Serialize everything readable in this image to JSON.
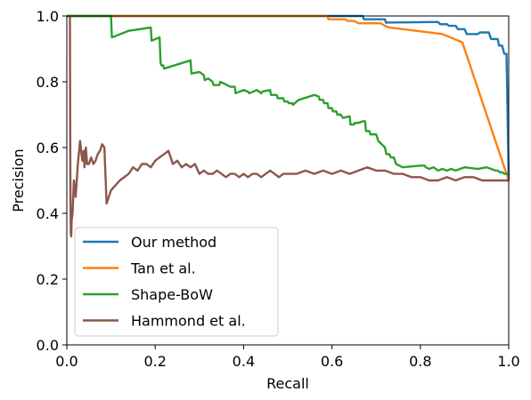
{
  "chart_data": {
    "type": "line",
    "title": "",
    "xlabel": "Recall",
    "ylabel": "Precision",
    "xlim": [
      0.0,
      1.0
    ],
    "ylim": [
      0.0,
      1.0
    ],
    "xticks": [
      "0.0",
      "0.2",
      "0.4",
      "0.6",
      "0.8",
      "1.0"
    ],
    "yticks": [
      "0.0",
      "0.2",
      "0.4",
      "0.6",
      "0.8",
      "1.0"
    ],
    "grid": false,
    "legend_position": "lower-left",
    "series": [
      {
        "name": "Our method",
        "color": "#1f77b4",
        "x": [
          0.0,
          0.67,
          0.672,
          0.72,
          0.722,
          0.84,
          0.845,
          0.86,
          0.865,
          0.88,
          0.885,
          0.9,
          0.905,
          0.93,
          0.935,
          0.955,
          0.96,
          0.975,
          0.978,
          0.985,
          0.99,
          0.995,
          1.0
        ],
        "y": [
          1.0,
          1.0,
          0.99,
          0.99,
          0.98,
          0.982,
          0.975,
          0.975,
          0.97,
          0.97,
          0.96,
          0.96,
          0.945,
          0.945,
          0.95,
          0.95,
          0.93,
          0.93,
          0.91,
          0.91,
          0.885,
          0.885,
          0.5
        ]
      },
      {
        "name": "Tan et al.",
        "color": "#ff7f0e",
        "x": [
          0.0,
          0.59,
          0.592,
          0.63,
          0.635,
          0.65,
          0.66,
          0.71,
          0.72,
          0.73,
          0.85,
          0.895,
          1.0
        ],
        "y": [
          1.0,
          1.0,
          0.99,
          0.99,
          0.985,
          0.985,
          0.978,
          0.978,
          0.97,
          0.965,
          0.945,
          0.92,
          0.5
        ]
      },
      {
        "name": "Shape-BoW",
        "color": "#2ca02c",
        "x": [
          0.0,
          0.1,
          0.102,
          0.14,
          0.19,
          0.192,
          0.21,
          0.212,
          0.214,
          0.218,
          0.22,
          0.28,
          0.282,
          0.3,
          0.31,
          0.312,
          0.32,
          0.33,
          0.332,
          0.345,
          0.347,
          0.37,
          0.38,
          0.382,
          0.4,
          0.41,
          0.413,
          0.43,
          0.44,
          0.442,
          0.46,
          0.462,
          0.475,
          0.477,
          0.49,
          0.492,
          0.5,
          0.502,
          0.51,
          0.512,
          0.52,
          0.525,
          0.56,
          0.57,
          0.572,
          0.58,
          0.582,
          0.59,
          0.592,
          0.6,
          0.602,
          0.61,
          0.612,
          0.62,
          0.625,
          0.64,
          0.642,
          0.65,
          0.652,
          0.66,
          0.67,
          0.675,
          0.677,
          0.685,
          0.687,
          0.7,
          0.705,
          0.72,
          0.723,
          0.73,
          0.733,
          0.74,
          0.745,
          0.76,
          0.8,
          0.81,
          0.812,
          0.82,
          0.83,
          0.84,
          0.85,
          0.86,
          0.87,
          0.88,
          0.89,
          0.9,
          0.93,
          0.95,
          0.96,
          0.97,
          0.975,
          0.98,
          0.985,
          0.99,
          1.0
        ],
        "y": [
          1.0,
          1.0,
          0.935,
          0.955,
          0.965,
          0.925,
          0.935,
          0.86,
          0.85,
          0.85,
          0.84,
          0.865,
          0.825,
          0.83,
          0.82,
          0.805,
          0.81,
          0.8,
          0.79,
          0.79,
          0.8,
          0.785,
          0.785,
          0.765,
          0.775,
          0.77,
          0.765,
          0.775,
          0.765,
          0.77,
          0.775,
          0.76,
          0.76,
          0.75,
          0.75,
          0.74,
          0.74,
          0.735,
          0.735,
          0.73,
          0.74,
          0.745,
          0.76,
          0.755,
          0.745,
          0.745,
          0.735,
          0.735,
          0.72,
          0.72,
          0.71,
          0.71,
          0.7,
          0.7,
          0.69,
          0.695,
          0.67,
          0.67,
          0.675,
          0.675,
          0.68,
          0.68,
          0.65,
          0.65,
          0.64,
          0.64,
          0.62,
          0.6,
          0.58,
          0.58,
          0.57,
          0.57,
          0.55,
          0.54,
          0.545,
          0.545,
          0.54,
          0.535,
          0.54,
          0.53,
          0.535,
          0.53,
          0.535,
          0.53,
          0.535,
          0.54,
          0.535,
          0.54,
          0.535,
          0.53,
          0.53,
          0.525,
          0.525,
          0.52,
          0.52
        ]
      },
      {
        "name": "Hammond et al.",
        "color": "#8c564b",
        "x": [
          0.007,
          0.008,
          0.009,
          0.01,
          0.011,
          0.013,
          0.016,
          0.02,
          0.025,
          0.03,
          0.035,
          0.038,
          0.04,
          0.043,
          0.046,
          0.05,
          0.055,
          0.06,
          0.065,
          0.07,
          0.075,
          0.08,
          0.085,
          0.09,
          0.095,
          0.1,
          0.12,
          0.14,
          0.15,
          0.16,
          0.17,
          0.18,
          0.19,
          0.2,
          0.21,
          0.22,
          0.23,
          0.235,
          0.24,
          0.25,
          0.26,
          0.27,
          0.28,
          0.29,
          0.3,
          0.31,
          0.32,
          0.33,
          0.34,
          0.35,
          0.36,
          0.37,
          0.38,
          0.39,
          0.4,
          0.41,
          0.42,
          0.43,
          0.44,
          0.45,
          0.46,
          0.47,
          0.48,
          0.49,
          0.5,
          0.52,
          0.54,
          0.56,
          0.58,
          0.6,
          0.62,
          0.64,
          0.66,
          0.68,
          0.7,
          0.72,
          0.74,
          0.76,
          0.78,
          0.8,
          0.82,
          0.84,
          0.86,
          0.88,
          0.9,
          0.92,
          0.94,
          0.96,
          0.98,
          1.0
        ],
        "y": [
          1.0,
          0.5,
          0.34,
          0.33,
          0.38,
          0.4,
          0.5,
          0.45,
          0.55,
          0.62,
          0.56,
          0.59,
          0.54,
          0.6,
          0.55,
          0.55,
          0.57,
          0.55,
          0.56,
          0.58,
          0.59,
          0.61,
          0.6,
          0.43,
          0.45,
          0.47,
          0.5,
          0.52,
          0.54,
          0.53,
          0.55,
          0.55,
          0.54,
          0.56,
          0.57,
          0.58,
          0.59,
          0.57,
          0.55,
          0.56,
          0.54,
          0.55,
          0.54,
          0.55,
          0.52,
          0.53,
          0.52,
          0.52,
          0.53,
          0.52,
          0.51,
          0.52,
          0.52,
          0.51,
          0.52,
          0.51,
          0.52,
          0.52,
          0.51,
          0.52,
          0.53,
          0.52,
          0.51,
          0.52,
          0.52,
          0.52,
          0.53,
          0.52,
          0.53,
          0.52,
          0.53,
          0.52,
          0.53,
          0.54,
          0.53,
          0.53,
          0.52,
          0.52,
          0.51,
          0.51,
          0.5,
          0.5,
          0.51,
          0.5,
          0.51,
          0.51,
          0.5,
          0.5,
          0.5,
          0.5
        ]
      }
    ]
  }
}
